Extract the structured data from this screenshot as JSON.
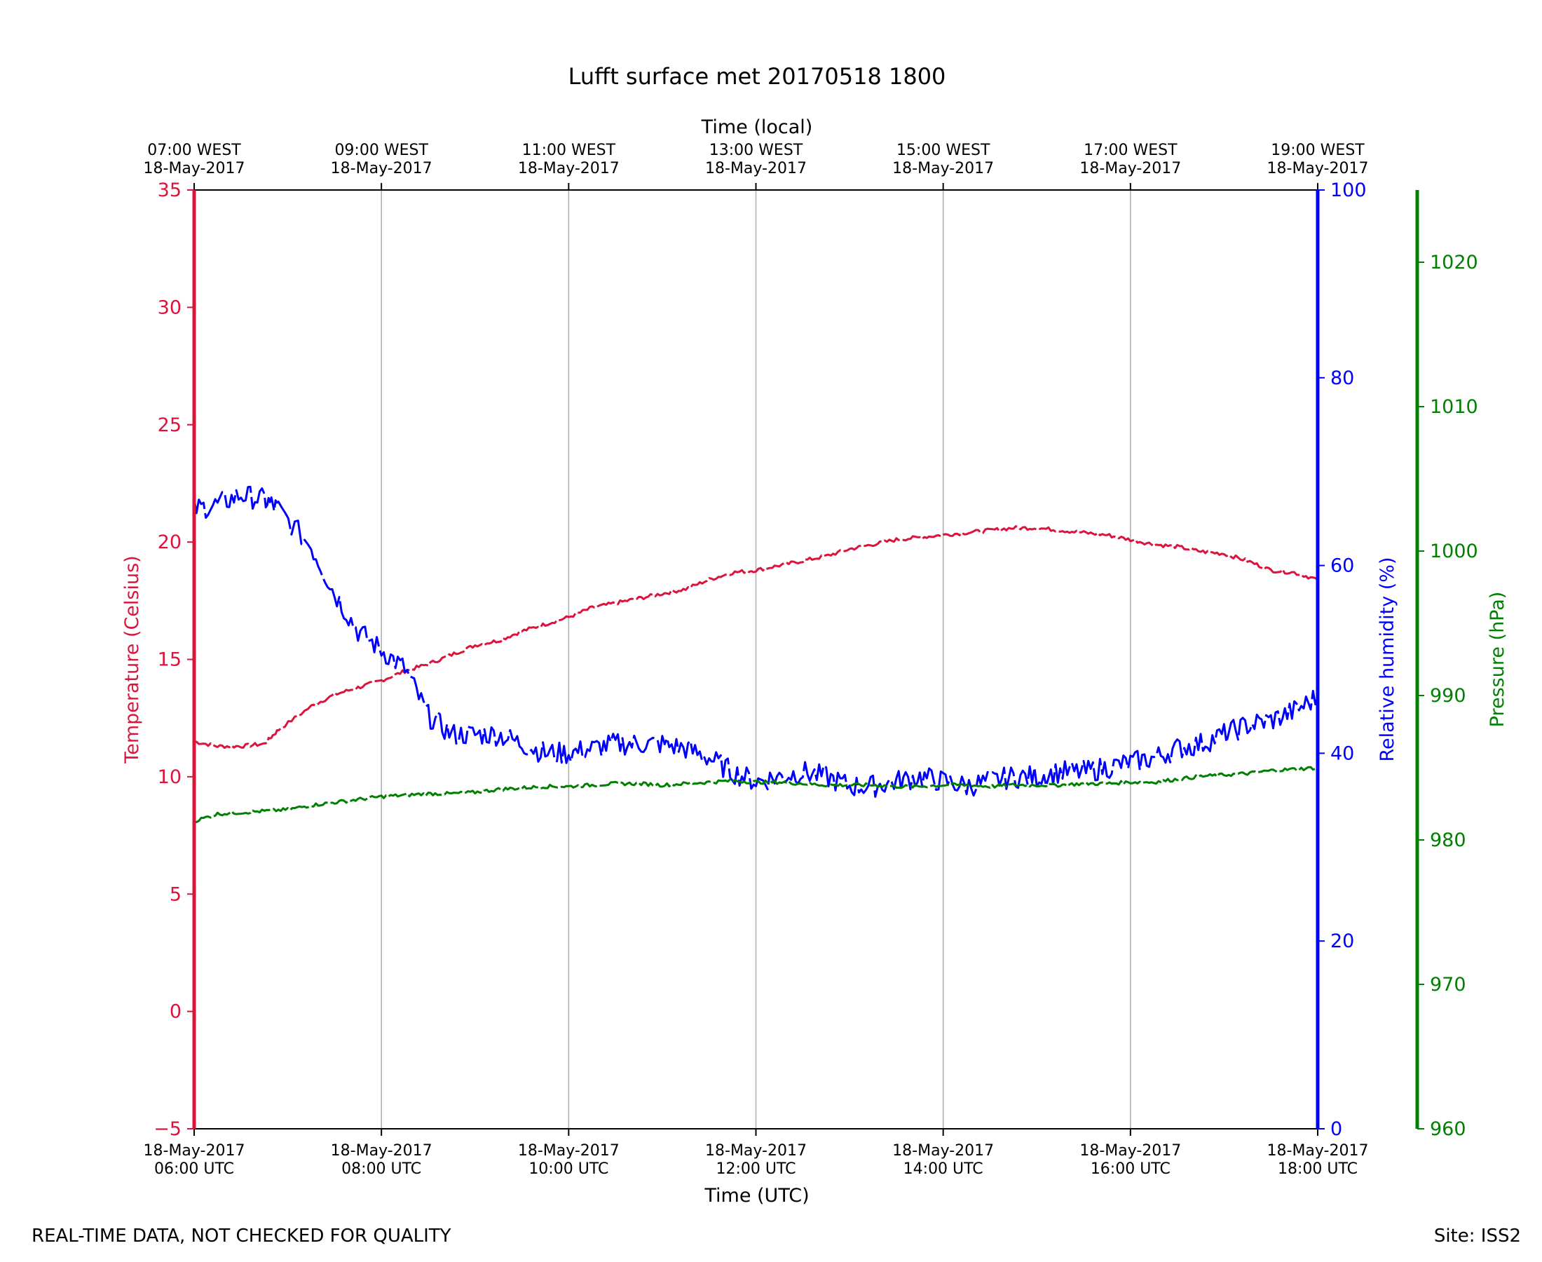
{
  "chart_data": {
    "type": "line",
    "title": "Lufft surface met 20170518 1800",
    "top_axis_label": "Time (local)",
    "xlabel": "Time (UTC)",
    "x_ticks_hours": [
      6,
      8,
      10,
      12,
      14,
      16,
      18
    ],
    "x_tick_labels_utc": [
      [
        "18-May-2017",
        "06:00 UTC"
      ],
      [
        "18-May-2017",
        "08:00 UTC"
      ],
      [
        "18-May-2017",
        "10:00 UTC"
      ],
      [
        "18-May-2017",
        "12:00 UTC"
      ],
      [
        "18-May-2017",
        "14:00 UTC"
      ],
      [
        "18-May-2017",
        "16:00 UTC"
      ],
      [
        "18-May-2017",
        "18:00 UTC"
      ]
    ],
    "x_tick_labels_local": [
      [
        "07:00 WEST",
        "18-May-2017"
      ],
      [
        "09:00 WEST",
        "18-May-2017"
      ],
      [
        "11:00 WEST",
        "18-May-2017"
      ],
      [
        "13:00 WEST",
        "18-May-2017"
      ],
      [
        "15:00 WEST",
        "18-May-2017"
      ],
      [
        "17:00 WEST",
        "18-May-2017"
      ],
      [
        "19:00 WEST",
        "18-May-2017"
      ]
    ],
    "xlim_hours": [
      6,
      18
    ],
    "grid": "vertical",
    "axes": [
      {
        "name": "Temperature (Celsius)",
        "side": "left",
        "color": "#dc143c",
        "ylim": [
          -5,
          35
        ],
        "ticks": [
          -5,
          0,
          5,
          10,
          15,
          20,
          25,
          30,
          35
        ],
        "tick_labels": [
          "−5",
          "0",
          "5",
          "10",
          "15",
          "20",
          "25",
          "30",
          "35"
        ]
      },
      {
        "name": "Relative humidity (%)",
        "side": "right",
        "color": "#0000ff",
        "ylim": [
          0,
          100
        ],
        "ticks": [
          0,
          20,
          40,
          60,
          80,
          100
        ],
        "tick_labels": [
          "0",
          "20",
          "40",
          "60",
          "80",
          "100"
        ]
      },
      {
        "name": "Pressure (hPa)",
        "side": "right-outer",
        "color": "#008000",
        "ylim": [
          960,
          1025
        ],
        "ticks": [
          960,
          970,
          980,
          990,
          1000,
          1010,
          1020
        ],
        "tick_labels": [
          "960",
          "970",
          "980",
          "990",
          "1000",
          "1010",
          "1020"
        ]
      }
    ],
    "series": [
      {
        "name": "Temperature",
        "axis": 0,
        "color": "#dc143c",
        "x": [
          6.0,
          6.25,
          6.5,
          6.75,
          6.9,
          7.25,
          7.5,
          7.75,
          8.0,
          8.25,
          8.5,
          8.75,
          9.0,
          9.25,
          9.5,
          9.75,
          10.0,
          10.25,
          10.5,
          10.75,
          11.0,
          11.25,
          11.5,
          11.75,
          12.0,
          12.25,
          12.5,
          12.75,
          13.0,
          13.25,
          13.5,
          13.75,
          14.0,
          14.25,
          14.5,
          14.75,
          15.0,
          15.25,
          15.5,
          15.75,
          16.0,
          16.25,
          16.5,
          16.75,
          17.0,
          17.25,
          17.5,
          17.75,
          18.0
        ],
        "y": [
          11.5,
          11.3,
          11.3,
          11.4,
          12.0,
          13.0,
          13.5,
          13.8,
          14.1,
          14.5,
          14.8,
          15.2,
          15.6,
          15.8,
          16.2,
          16.5,
          16.8,
          17.2,
          17.4,
          17.6,
          17.8,
          18.0,
          18.4,
          18.7,
          18.8,
          19.0,
          19.2,
          19.4,
          19.7,
          19.9,
          20.1,
          20.2,
          20.3,
          20.4,
          20.5,
          20.6,
          20.6,
          20.5,
          20.4,
          20.3,
          20.1,
          19.9,
          19.8,
          19.6,
          19.5,
          19.2,
          18.8,
          18.7,
          18.4
        ]
      },
      {
        "name": "Relative humidity",
        "axis": 1,
        "color": "#0000ff",
        "x": [
          6.0,
          6.25,
          6.5,
          6.75,
          6.9,
          7.25,
          7.5,
          7.75,
          8.0,
          8.25,
          8.5,
          8.75,
          9.0,
          9.25,
          9.5,
          9.75,
          10.0,
          10.25,
          10.5,
          10.75,
          11.0,
          11.25,
          11.5,
          11.75,
          12.0,
          12.25,
          12.5,
          12.75,
          13.0,
          13.25,
          13.5,
          13.75,
          14.0,
          14.25,
          14.5,
          14.75,
          15.0,
          15.25,
          15.5,
          15.75,
          16.0,
          16.25,
          16.5,
          16.75,
          17.0,
          17.25,
          17.5,
          17.75,
          18.0
        ],
        "y": [
          66,
          66.5,
          67.5,
          67,
          66,
          62,
          57,
          53,
          51,
          49,
          44,
          42,
          42,
          42,
          41,
          40,
          40,
          40.5,
          41,
          41,
          41,
          40.5,
          39.5,
          38,
          37,
          37.5,
          38,
          37.5,
          36.5,
          36.5,
          37,
          37.5,
          37,
          36.5,
          37,
          37.5,
          37.5,
          38,
          38,
          38.5,
          39,
          39.5,
          40.5,
          41,
          42,
          43,
          43.5,
          44.5,
          46
        ]
      },
      {
        "name": "Pressure",
        "axis": 2,
        "color": "#008000",
        "x": [
          6.0,
          6.25,
          6.5,
          6.75,
          7.0,
          7.25,
          7.5,
          7.75,
          8.0,
          8.25,
          8.5,
          8.75,
          9.0,
          9.25,
          9.5,
          9.75,
          10.0,
          10.25,
          10.5,
          10.75,
          11.0,
          11.25,
          11.5,
          11.75,
          12.0,
          12.25,
          12.5,
          12.75,
          13.0,
          13.25,
          13.5,
          13.75,
          14.0,
          14.25,
          14.5,
          14.75,
          15.0,
          15.25,
          15.5,
          15.75,
          16.0,
          16.25,
          16.5,
          16.75,
          17.0,
          17.25,
          17.5,
          17.75,
          18.0
        ],
        "y": [
          981.3,
          981.8,
          981.9,
          982.0,
          982.1,
          982.4,
          982.6,
          982.8,
          983.0,
          983.1,
          983.2,
          983.2,
          983.3,
          983.5,
          983.6,
          983.7,
          983.7,
          983.8,
          983.9,
          983.9,
          983.8,
          983.9,
          984.0,
          984.1,
          984.0,
          984.0,
          983.9,
          983.8,
          983.8,
          983.8,
          983.7,
          983.7,
          983.8,
          983.8,
          983.7,
          983.8,
          983.8,
          983.8,
          983.9,
          983.9,
          984.0,
          984.0,
          984.2,
          984.4,
          984.5,
          984.6,
          984.8,
          984.9,
          985.0
        ]
      }
    ]
  },
  "footer": {
    "left": "REAL-TIME DATA, NOT CHECKED FOR QUALITY",
    "right": "Site: ISS2"
  }
}
